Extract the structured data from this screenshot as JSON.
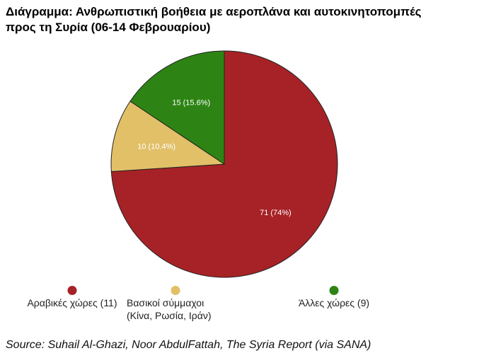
{
  "title": {
    "line1": "Διάγραμμα: Ανθρωπιστική βοήθεια με αεροπλάνα και αυτοκινητοπομπές",
    "line2": "προς τη Συρία (06-14 Φεβρουαρίου)"
  },
  "chart_data": {
    "type": "pie",
    "title": "Διάγραμμα: Ανθρωπιστική βοήθεια με αεροπλάνα και αυτοκινητοπομπές προς τη Συρία (06-14 Φεβρουαρίου)",
    "slices": [
      {
        "name": "Αραβικές χώρες (11)",
        "value": 71,
        "label": "71 (74%)",
        "color": "#a72226"
      },
      {
        "name": "Βασικοί σύμμαχοι\n(Κίνα, Ρωσία, Ιράν)",
        "value": 10,
        "label": "10 (10.4%)",
        "color": "#e1c068"
      },
      {
        "name": "Άλλες χώρες (9)",
        "value": 15,
        "label": "15 (15.6%)",
        "color": "#2d8414"
      }
    ],
    "legend_position": "bottom"
  },
  "source": "Source: Suhail Al-Ghazi, Noor AbdulFattah, The Syria Report (via SANA)"
}
